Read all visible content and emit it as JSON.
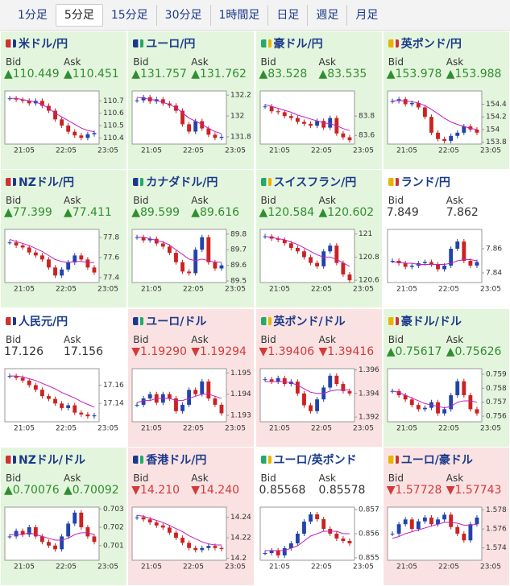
{
  "tabs": [
    "1分足",
    "5分足",
    "15分足",
    "30分足",
    "1時間足",
    "日足",
    "週足",
    "月足"
  ],
  "selected_tab": 1,
  "bid_label": "Bid",
  "ask_label": "Ask",
  "panels": [
    {
      "name": "米ドル/円",
      "trend": "up",
      "bid": "▲110.449",
      "ask": "▲110.451",
      "chart": {
        "ylim": [
          110.35,
          110.78
        ],
        "yticks": [
          110.4,
          110.5,
          110.6,
          110.7
        ],
        "xticks": [
          "21:05",
          "22:05",
          "23:05"
        ],
        "close": [
          110.72,
          110.71,
          110.7,
          110.68,
          110.7,
          110.66,
          110.62,
          110.55,
          110.5,
          110.45,
          110.42,
          110.4,
          110.43,
          110.44
        ],
        "ma": [
          110.72,
          110.72,
          110.71,
          110.7,
          110.69,
          110.67,
          110.64,
          110.6,
          110.57,
          110.54,
          110.51,
          110.48,
          110.46,
          110.45
        ]
      }
    },
    {
      "name": "ユーロ/円",
      "trend": "up",
      "bid": "▲131.757",
      "ask": "▲131.762",
      "chart": {
        "ylim": [
          131.73,
          132.24
        ],
        "yticks": [
          131.8,
          132,
          132.2
        ],
        "xticks": [
          "21:05",
          "22:05",
          "23:05"
        ],
        "close": [
          132.15,
          132.18,
          132.14,
          132.16,
          132.12,
          132.1,
          132.05,
          131.92,
          131.85,
          131.95,
          131.88,
          131.82,
          131.79,
          131.8
        ],
        "ma": [
          132.18,
          132.17,
          132.16,
          132.15,
          132.13,
          132.11,
          132.08,
          132.03,
          131.98,
          131.95,
          131.92,
          131.88,
          131.85,
          131.83
        ]
      }
    },
    {
      "name": "豪ドル/円",
      "trend": "up",
      "bid": "▲83.528",
      "ask": "▲83.535",
      "chart": {
        "ylim": [
          83.51,
          84.06
        ],
        "yticks": [
          83.6,
          83.8
        ],
        "xticks": [
          "21:05",
          "22:05",
          "23:05"
        ],
        "close": [
          83.9,
          83.85,
          83.84,
          83.8,
          83.78,
          83.74,
          83.72,
          83.7,
          83.75,
          83.68,
          83.78,
          83.62,
          83.58,
          83.55
        ],
        "ma": [
          83.92,
          83.9,
          83.88,
          83.86,
          83.84,
          83.81,
          83.79,
          83.77,
          83.75,
          83.73,
          83.72,
          83.7,
          83.67,
          83.65
        ]
      }
    },
    {
      "name": "英ポンド/円",
      "trend": "up",
      "bid": "▲153.978",
      "ask": "▲153.988",
      "chart": {
        "ylim": [
          153.77,
          154.61
        ],
        "yticks": [
          153.8,
          154,
          154.2,
          154.4
        ],
        "xticks": [
          "21:05",
          "22:05",
          "23:05"
        ],
        "close": [
          154.45,
          154.48,
          154.4,
          154.42,
          154.35,
          154.2,
          153.95,
          153.85,
          153.82,
          153.9,
          153.95,
          154.05,
          154.0,
          153.95
        ],
        "ma": [
          154.45,
          154.46,
          154.45,
          154.44,
          154.42,
          154.38,
          154.32,
          154.25,
          154.18,
          154.12,
          154.08,
          154.05,
          154.02,
          154.0
        ]
      }
    },
    {
      "name": "NZドル/円",
      "trend": "up",
      "bid": "▲77.399",
      "ask": "▲77.411",
      "chart": {
        "ylim": [
          77.35,
          77.88
        ],
        "yticks": [
          77.4,
          77.6,
          77.8
        ],
        "xticks": [
          "21:05",
          "22:05",
          "23:05"
        ],
        "close": [
          77.75,
          77.72,
          77.7,
          77.65,
          77.62,
          77.58,
          77.5,
          77.42,
          77.48,
          77.55,
          77.62,
          77.58,
          77.5,
          77.45
        ],
        "ma": [
          77.78,
          77.76,
          77.74,
          77.72,
          77.69,
          77.66,
          77.62,
          77.58,
          77.56,
          77.55,
          77.56,
          77.56,
          77.55,
          77.55
        ]
      }
    },
    {
      "name": "カナダドル/円",
      "trend": "up",
      "bid": "▲89.599",
      "ask": "▲89.616",
      "chart": {
        "ylim": [
          89.49,
          89.83
        ],
        "yticks": [
          89.5,
          89.6,
          89.7,
          89.8
        ],
        "xticks": [
          "21:05",
          "22:05",
          "23:05"
        ],
        "close": [
          89.78,
          89.76,
          89.77,
          89.74,
          89.72,
          89.68,
          89.62,
          89.56,
          89.55,
          89.7,
          89.78,
          89.62,
          89.58,
          89.6
        ],
        "ma": [
          89.78,
          89.78,
          89.77,
          89.76,
          89.75,
          89.73,
          89.7,
          89.67,
          89.64,
          89.63,
          89.64,
          89.63,
          89.62,
          89.62
        ]
      }
    },
    {
      "name": "スイスフラン/円",
      "trend": "up",
      "bid": "▲120.584",
      "ask": "▲120.602",
      "chart": {
        "ylim": [
          120.58,
          121.04
        ],
        "yticks": [
          120.6,
          120.8,
          121
        ],
        "xticks": [
          "21:05",
          "22:05",
          "23:05"
        ],
        "close": [
          120.98,
          120.96,
          120.95,
          120.92,
          120.88,
          120.85,
          120.8,
          120.75,
          120.72,
          120.85,
          120.9,
          120.75,
          120.65,
          120.6
        ],
        "ma": [
          120.98,
          120.97,
          120.96,
          120.95,
          120.93,
          120.91,
          120.88,
          120.85,
          120.82,
          120.8,
          120.8,
          120.78,
          120.75,
          120.72
        ]
      }
    },
    {
      "name": "ランド/円",
      "trend": "flat",
      "bid": "7.849",
      "ask": "7.862",
      "chart": {
        "ylim": [
          7.832,
          7.876
        ],
        "yticks": [
          7.84,
          7.86
        ],
        "xticks": [
          "21:05",
          "22:05",
          "23:05"
        ],
        "close": [
          7.85,
          7.848,
          7.845,
          7.846,
          7.848,
          7.849,
          7.847,
          7.843,
          7.846,
          7.86,
          7.866,
          7.85,
          7.846,
          7.849
        ],
        "ma": [
          7.849,
          7.849,
          7.848,
          7.848,
          7.847,
          7.847,
          7.847,
          7.847,
          7.847,
          7.848,
          7.85,
          7.851,
          7.851,
          7.85
        ]
      }
    },
    {
      "name": "人民元/円",
      "trend": "flat",
      "bid": "17.126",
      "ask": "17.156",
      "chart": {
        "ylim": [
          17.12,
          17.178
        ],
        "yticks": [
          17.14,
          17.16
        ],
        "xticks": [
          "21:05",
          "22:05",
          "23:05"
        ],
        "close": [
          17.17,
          17.168,
          17.165,
          17.16,
          17.155,
          17.148,
          17.145,
          17.14,
          17.135,
          17.138,
          17.13,
          17.128,
          17.126,
          17.127
        ],
        "ma": [
          17.17,
          17.17,
          17.169,
          17.167,
          17.165,
          17.162,
          17.159,
          17.156,
          17.152,
          17.149,
          17.146,
          17.142,
          17.139,
          17.136
        ]
      }
    },
    {
      "name": "ユーロ/ドル",
      "trend": "down",
      "bid": "▼1.19290",
      "ask": "▼1.19294",
      "chart": {
        "ylim": [
          1.1927,
          1.1952
        ],
        "yticks": [
          1.193,
          1.194,
          1.195
        ],
        "xticks": [
          "21:05",
          "22:05",
          "23:05"
        ],
        "close": [
          1.1935,
          1.1938,
          1.194,
          1.1936,
          1.194,
          1.1938,
          1.1932,
          1.1935,
          1.1942,
          1.194,
          1.1946,
          1.1938,
          1.1935,
          1.1931
        ],
        "ma": [
          1.1936,
          1.1937,
          1.1937,
          1.1938,
          1.1938,
          1.1938,
          1.1937,
          1.1937,
          1.1938,
          1.1939,
          1.194,
          1.194,
          1.1939,
          1.1938
        ]
      }
    },
    {
      "name": "英ポンド/ドル",
      "trend": "down",
      "bid": "▼1.39406",
      "ask": "▼1.39416",
      "chart": {
        "ylim": [
          1.3916,
          1.3961
        ],
        "yticks": [
          1.392,
          1.394,
          1.396
        ],
        "xticks": [
          "21:05",
          "22:05",
          "23:05"
        ],
        "close": [
          1.3952,
          1.395,
          1.3953,
          1.3948,
          1.395,
          1.394,
          1.393,
          1.3925,
          1.3935,
          1.3945,
          1.3955,
          1.3948,
          1.3942,
          1.394
        ],
        "ma": [
          1.395,
          1.395,
          1.395,
          1.395,
          1.3949,
          1.3947,
          1.3944,
          1.3941,
          1.394,
          1.394,
          1.3942,
          1.3943,
          1.3943,
          1.3943
        ]
      }
    },
    {
      "name": "豪ドル/ドル",
      "trend": "up",
      "bid": "▲0.75617",
      "ask": "▲0.75626",
      "chart": {
        "ylim": [
          0.7556,
          0.7594
        ],
        "yticks": [
          0.756,
          0.757,
          0.758,
          0.759
        ],
        "xticks": [
          "21:05",
          "22:05",
          "23:05"
        ],
        "close": [
          0.7578,
          0.7575,
          0.7572,
          0.7568,
          0.7565,
          0.7566,
          0.757,
          0.7562,
          0.7565,
          0.7575,
          0.7585,
          0.7575,
          0.7565,
          0.7562
        ],
        "ma": [
          0.7578,
          0.7577,
          0.7575,
          0.7573,
          0.7571,
          0.7569,
          0.7568,
          0.7567,
          0.7566,
          0.7567,
          0.757,
          0.7571,
          0.7571,
          0.757
        ]
      }
    },
    {
      "name": "NZドル/ドル",
      "trend": "up",
      "bid": "▲0.70076",
      "ask": "▲0.70092",
      "chart": {
        "ylim": [
          0.7002,
          0.7031
        ],
        "yticks": [
          0.701,
          0.702,
          0.703
        ],
        "xticks": [
          "21:05",
          "22:05",
          "23:05"
        ],
        "close": [
          0.7015,
          0.7018,
          0.7016,
          0.702,
          0.7015,
          0.7012,
          0.701,
          0.7008,
          0.7015,
          0.7022,
          0.7028,
          0.702,
          0.7015,
          0.7012
        ],
        "ma": [
          0.7016,
          0.7016,
          0.7016,
          0.7017,
          0.7016,
          0.7015,
          0.7014,
          0.7013,
          0.7013,
          0.7014,
          0.7016,
          0.7017,
          0.7017,
          0.7016
        ]
      }
    },
    {
      "name": "香港ドル/円",
      "trend": "down",
      "bid": "▼14.210",
      "ask": "▼14.240",
      "chart": {
        "ylim": [
          14.198,
          14.25
        ],
        "yticks": [
          14.2,
          14.22,
          14.24
        ],
        "xticks": [
          "21:05",
          "22:05",
          "23:05"
        ],
        "close": [
          14.24,
          14.238,
          14.235,
          14.232,
          14.23,
          14.225,
          14.22,
          14.215,
          14.21,
          14.208,
          14.21,
          14.212,
          14.21,
          14.209
        ],
        "ma": [
          14.242,
          14.241,
          14.239,
          14.237,
          14.235,
          14.232,
          14.229,
          14.226,
          14.222,
          14.219,
          14.216,
          14.214,
          14.213,
          14.213
        ]
      }
    },
    {
      "name": "ユーロ/英ポンド",
      "trend": "flat",
      "bid": "0.85568",
      "ask": "0.85578",
      "chart": {
        "ylim": [
          0.8549,
          0.8571
        ],
        "yticks": [
          0.855,
          0.856,
          0.857
        ],
        "xticks": [
          "21:05",
          "22:05",
          "23:05"
        ],
        "close": [
          0.8552,
          0.8553,
          0.8551,
          0.8554,
          0.8556,
          0.856,
          0.8565,
          0.8568,
          0.8566,
          0.8562,
          0.856,
          0.8558,
          0.8557,
          0.8556
        ],
        "ma": [
          0.8553,
          0.8553,
          0.8553,
          0.8553,
          0.8554,
          0.8555,
          0.8557,
          0.8559,
          0.856,
          0.8561,
          0.8561,
          0.8561,
          0.856,
          0.856
        ]
      }
    },
    {
      "name": "ユーロ/豪ドル",
      "trend": "down",
      "bid": "▼1.57728",
      "ask": "▼1.57743",
      "chart": {
        "ylim": [
          1.5727,
          1.5783
        ],
        "yticks": [
          1.574,
          1.576,
          1.578
        ],
        "xticks": [
          "21:05",
          "22:05",
          "23:05"
        ],
        "close": [
          1.5755,
          1.5765,
          1.577,
          1.576,
          1.5768,
          1.5772,
          1.5765,
          1.577,
          1.5775,
          1.5762,
          1.5755,
          1.5748,
          1.5765,
          1.5772
        ],
        "ma": [
          1.575,
          1.5752,
          1.5755,
          1.5757,
          1.5759,
          1.5761,
          1.5763,
          1.5765,
          1.5767,
          1.5767,
          1.5766,
          1.5764,
          1.5764,
          1.5765
        ]
      }
    }
  ]
}
